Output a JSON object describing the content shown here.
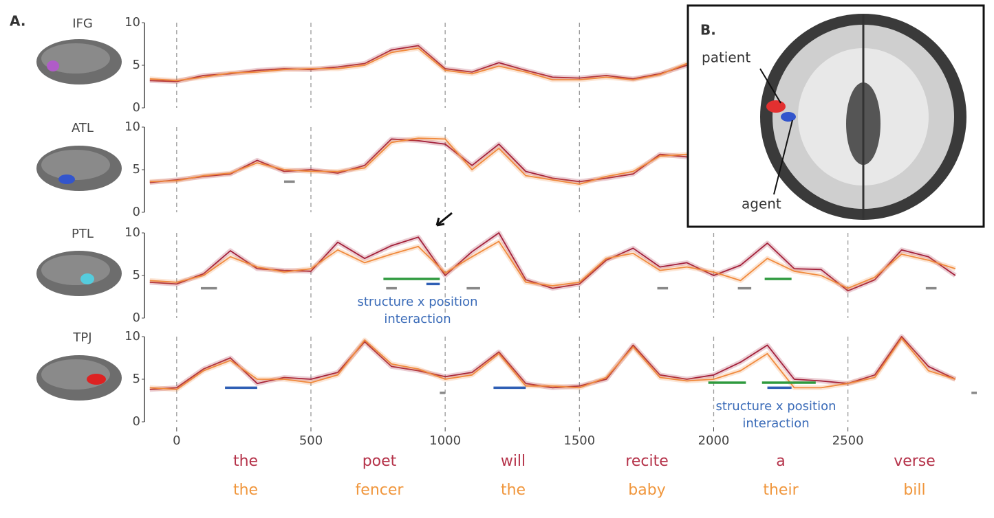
{
  "panel_label": "A.",
  "chart_data": [
    {
      "type": "line",
      "title": "IFG",
      "xlim": [
        -120,
        2980
      ],
      "ylim": [
        0,
        10
      ],
      "yticks": [
        0,
        5,
        10
      ],
      "x": [
        -100,
        0,
        100,
        200,
        300,
        400,
        500,
        600,
        700,
        800,
        900,
        1000,
        1100,
        1200,
        1300,
        1400,
        1500,
        1600,
        1700,
        1800,
        1900
      ],
      "series": [
        {
          "color": "#a3203a",
          "values": [
            3.2,
            3.1,
            3.8,
            4.0,
            4.4,
            4.6,
            4.5,
            4.8,
            5.2,
            6.8,
            7.3,
            4.6,
            4.2,
            5.3,
            4.4,
            3.6,
            3.5,
            3.8,
            3.4,
            4.0,
            5.0
          ]
        },
        {
          "color": "#f08a3c",
          "values": [
            3.4,
            3.2,
            3.6,
            4.1,
            4.2,
            4.5,
            4.6,
            4.6,
            5.0,
            6.5,
            7.0,
            4.4,
            4.0,
            4.9,
            4.2,
            3.3,
            3.3,
            3.6,
            3.3,
            3.9,
            5.2
          ]
        }
      ],
      "bars": []
    },
    {
      "type": "line",
      "title": "ATL",
      "xlim": [
        -120,
        2980
      ],
      "ylim": [
        0,
        10
      ],
      "yticks": [
        0,
        5,
        10
      ],
      "x": [
        -100,
        0,
        100,
        200,
        300,
        400,
        500,
        600,
        700,
        800,
        900,
        1000,
        1100,
        1200,
        1300,
        1400,
        1500,
        1600,
        1700,
        1800,
        1900
      ],
      "series": [
        {
          "color": "#a3203a",
          "values": [
            3.5,
            3.8,
            4.2,
            4.5,
            6.1,
            4.8,
            5.0,
            4.6,
            5.5,
            8.6,
            8.4,
            8.0,
            5.5,
            8.0,
            4.8,
            4.0,
            3.6,
            4.0,
            4.5,
            6.8,
            6.5
          ]
        },
        {
          "color": "#f08a3c",
          "values": [
            3.6,
            3.7,
            4.3,
            4.6,
            5.8,
            5.0,
            4.8,
            4.8,
            5.2,
            8.2,
            8.7,
            8.6,
            5.0,
            7.5,
            4.3,
            3.8,
            3.3,
            4.2,
            4.8,
            6.6,
            6.8
          ]
        }
      ],
      "bars": [
        {
          "color": "#888888",
          "start": 400,
          "end": 440,
          "y": 3.6
        }
      ]
    },
    {
      "type": "line",
      "title": "PTL",
      "xlim": [
        -120,
        2980
      ],
      "ylim": [
        0,
        10
      ],
      "yticks": [
        0,
        5,
        10
      ],
      "x": [
        -100,
        0,
        100,
        200,
        300,
        400,
        500,
        600,
        700,
        800,
        900,
        1000,
        1100,
        1200,
        1300,
        1400,
        1500,
        1600,
        1700,
        1800,
        1900,
        2000,
        2100,
        2200,
        2300,
        2400,
        2500,
        2600,
        2700,
        2800,
        2900
      ],
      "series": [
        {
          "color": "#a3203a",
          "values": [
            4.2,
            4.0,
            5.2,
            7.9,
            5.8,
            5.6,
            5.5,
            8.9,
            7.0,
            8.5,
            9.5,
            5.0,
            7.8,
            10.0,
            4.5,
            3.5,
            4.0,
            6.8,
            8.2,
            6.0,
            6.5,
            5.0,
            6.2,
            8.8,
            5.8,
            5.7,
            3.2,
            4.5,
            8.0,
            7.2,
            5.0
          ]
        },
        {
          "color": "#f08a3c",
          "values": [
            4.4,
            4.2,
            5.0,
            7.2,
            6.0,
            5.4,
            5.8,
            8.0,
            6.5,
            7.5,
            8.4,
            5.3,
            7.2,
            9.0,
            4.2,
            3.8,
            4.2,
            7.0,
            7.6,
            5.6,
            6.0,
            5.4,
            4.4,
            7.0,
            5.5,
            5.0,
            3.5,
            4.8,
            7.5,
            6.8,
            5.8
          ]
        }
      ],
      "bars": [
        {
          "color": "#888888",
          "start": 90,
          "end": 150,
          "y": 3.5
        },
        {
          "color": "#2e9a3e",
          "start": 770,
          "end": 980,
          "y": 4.6
        },
        {
          "color": "#2f5fb5",
          "start": 930,
          "end": 980,
          "y": 4.0
        },
        {
          "color": "#888888",
          "start": 780,
          "end": 820,
          "y": 3.5
        },
        {
          "color": "#888888",
          "start": 1080,
          "end": 1130,
          "y": 3.5
        },
        {
          "color": "#888888",
          "start": 1790,
          "end": 1830,
          "y": 3.5
        },
        {
          "color": "#888888",
          "start": 2090,
          "end": 2140,
          "y": 3.5
        },
        {
          "color": "#2e9a3e",
          "start": 2190,
          "end": 2290,
          "y": 4.6
        },
        {
          "color": "#888888",
          "start": 2790,
          "end": 2830,
          "y": 3.5
        }
      ]
    },
    {
      "type": "line",
      "title": "TPJ",
      "xlim": [
        -120,
        2980
      ],
      "ylim": [
        0,
        10
      ],
      "yticks": [
        0,
        5,
        10
      ],
      "xticks": [
        0,
        500,
        1000,
        1500,
        2000,
        2500
      ],
      "x": [
        -100,
        0,
        100,
        200,
        300,
        400,
        500,
        600,
        700,
        800,
        900,
        1000,
        1100,
        1200,
        1300,
        1400,
        1500,
        1600,
        1700,
        1800,
        1900,
        2000,
        2100,
        2200,
        2300,
        2400,
        2500,
        2600,
        2700,
        2800,
        2900
      ],
      "series": [
        {
          "color": "#a3203a",
          "values": [
            3.8,
            4.0,
            6.2,
            7.5,
            4.5,
            5.2,
            5.0,
            5.8,
            9.4,
            6.5,
            6.0,
            5.3,
            5.8,
            8.2,
            4.5,
            4.0,
            4.2,
            5.0,
            9.0,
            5.5,
            5.0,
            5.5,
            7.0,
            9.0,
            5.0,
            4.8,
            4.5,
            5.5,
            10.0,
            6.5,
            5.0
          ]
        },
        {
          "color": "#f08a3c",
          "values": [
            4.0,
            3.8,
            6.0,
            7.2,
            5.0,
            5.0,
            4.6,
            5.5,
            9.6,
            6.8,
            6.2,
            5.0,
            5.5,
            8.0,
            4.2,
            4.2,
            4.0,
            5.2,
            8.8,
            5.2,
            4.8,
            5.0,
            6.0,
            8.0,
            4.0,
            4.0,
            4.5,
            5.2,
            9.8,
            6.0,
            5.0
          ]
        }
      ],
      "bars": [
        {
          "color": "#2f5fb5",
          "start": 180,
          "end": 300,
          "y": 4.0
        },
        {
          "color": "#2f5fb5",
          "start": 1180,
          "end": 1300,
          "y": 4.0
        },
        {
          "color": "#888888",
          "start": 980,
          "end": 1000,
          "y": 3.4
        },
        {
          "color": "#2e9a3e",
          "start": 1980,
          "end": 2120,
          "y": 4.6
        },
        {
          "color": "#2e9a3e",
          "start": 2180,
          "end": 2380,
          "y": 4.6
        },
        {
          "color": "#2f5fb5",
          "start": 2200,
          "end": 2290,
          "y": 4.0
        },
        {
          "color": "#888888",
          "start": 2960,
          "end": 2980,
          "y": 3.4
        }
      ]
    }
  ],
  "sentences": [
    {
      "color": "#b5334a",
      "words": [
        "the",
        "poet",
        "will",
        "recite",
        "a",
        "verse"
      ]
    },
    {
      "color": "#f0963c",
      "words": [
        "the",
        "fencer",
        "the",
        "baby",
        "their",
        "bill"
      ]
    }
  ],
  "annotations": [
    {
      "lines": [
        "structure x position",
        "interaction"
      ]
    },
    {
      "lines": [
        "structure x position",
        "interaction"
      ]
    }
  ],
  "inset": {
    "label": "B.",
    "patient": "patient",
    "agent": "agent"
  }
}
